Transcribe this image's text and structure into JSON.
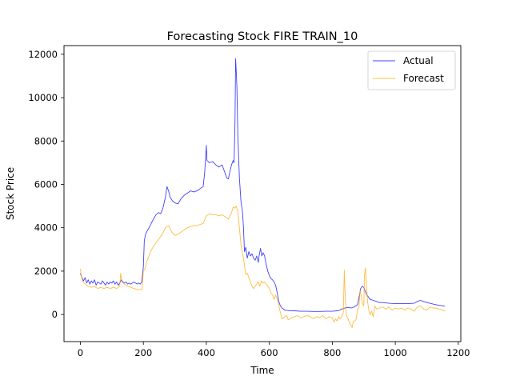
{
  "chart_data": {
    "type": "line",
    "title": "Forecasting Stock FIRE TRAIN_10",
    "xlabel": "Time",
    "ylabel": "Stock Price",
    "xlim": [
      -52,
      1208
    ],
    "ylim": [
      -1250,
      12400
    ],
    "x_ticks": [
      0,
      200,
      400,
      600,
      800,
      1000,
      1200
    ],
    "y_ticks": [
      0,
      2000,
      4000,
      6000,
      8000,
      10000,
      12000
    ],
    "grid": false,
    "legend_position": "upper-right",
    "series": [
      {
        "name": "Actual",
        "color": "#0000ff",
        "points": [
          [
            0,
            1900
          ],
          [
            5,
            1700
          ],
          [
            10,
            1550
          ],
          [
            15,
            1700
          ],
          [
            20,
            1450
          ],
          [
            25,
            1600
          ],
          [
            30,
            1400
          ],
          [
            35,
            1550
          ],
          [
            40,
            1450
          ],
          [
            45,
            1600
          ],
          [
            50,
            1350
          ],
          [
            55,
            1500
          ],
          [
            60,
            1450
          ],
          [
            65,
            1400
          ],
          [
            70,
            1550
          ],
          [
            75,
            1450
          ],
          [
            80,
            1350
          ],
          [
            85,
            1500
          ],
          [
            90,
            1400
          ],
          [
            95,
            1500
          ],
          [
            100,
            1450
          ],
          [
            105,
            1550
          ],
          [
            110,
            1400
          ],
          [
            115,
            1500
          ],
          [
            120,
            1350
          ],
          [
            125,
            1450
          ],
          [
            130,
            1600
          ],
          [
            135,
            1500
          ],
          [
            140,
            1450
          ],
          [
            145,
            1500
          ],
          [
            150,
            1400
          ],
          [
            155,
            1450
          ],
          [
            160,
            1400
          ],
          [
            165,
            1450
          ],
          [
            170,
            1500
          ],
          [
            175,
            1450
          ],
          [
            180,
            1400
          ],
          [
            185,
            1450
          ],
          [
            190,
            1400
          ],
          [
            195,
            1500
          ],
          [
            200,
            2200
          ],
          [
            203,
            3400
          ],
          [
            207,
            3700
          ],
          [
            212,
            3850
          ],
          [
            218,
            4000
          ],
          [
            225,
            4200
          ],
          [
            232,
            4400
          ],
          [
            240,
            4600
          ],
          [
            248,
            4700
          ],
          [
            255,
            4650
          ],
          [
            262,
            4900
          ],
          [
            270,
            5400
          ],
          [
            275,
            5900
          ],
          [
            280,
            5700
          ],
          [
            285,
            5400
          ],
          [
            292,
            5250
          ],
          [
            300,
            5150
          ],
          [
            310,
            5100
          ],
          [
            320,
            5350
          ],
          [
            330,
            5500
          ],
          [
            340,
            5600
          ],
          [
            350,
            5700
          ],
          [
            360,
            5650
          ],
          [
            370,
            5700
          ],
          [
            380,
            5800
          ],
          [
            390,
            5900
          ],
          [
            395,
            6600
          ],
          [
            400,
            7800
          ],
          [
            402,
            7100
          ],
          [
            410,
            7000
          ],
          [
            420,
            7050
          ],
          [
            430,
            6900
          ],
          [
            440,
            6800
          ],
          [
            450,
            6900
          ],
          [
            455,
            6700
          ],
          [
            460,
            6500
          ],
          [
            465,
            6300
          ],
          [
            470,
            6250
          ],
          [
            475,
            6600
          ],
          [
            480,
            6900
          ],
          [
            485,
            7100
          ],
          [
            488,
            7000
          ],
          [
            491,
            8900
          ],
          [
            493,
            11800
          ],
          [
            495,
            11200
          ],
          [
            497,
            10500
          ],
          [
            500,
            8200
          ],
          [
            505,
            6300
          ],
          [
            510,
            5200
          ],
          [
            515,
            4700
          ],
          [
            518,
            4000
          ],
          [
            521,
            2900
          ],
          [
            525,
            3100
          ],
          [
            530,
            2600
          ],
          [
            535,
            2900
          ],
          [
            540,
            2700
          ],
          [
            545,
            2800
          ],
          [
            550,
            2600
          ],
          [
            555,
            2500
          ],
          [
            560,
            2700
          ],
          [
            565,
            2400
          ],
          [
            568,
            2750
          ],
          [
            572,
            3050
          ],
          [
            576,
            2700
          ],
          [
            580,
            2850
          ],
          [
            585,
            2700
          ],
          [
            590,
            2300
          ],
          [
            595,
            2000
          ],
          [
            600,
            1800
          ],
          [
            605,
            1650
          ],
          [
            610,
            1600
          ],
          [
            615,
            1500
          ],
          [
            620,
            1350
          ],
          [
            625,
            1000
          ],
          [
            630,
            600
          ],
          [
            635,
            400
          ],
          [
            640,
            300
          ],
          [
            645,
            250
          ],
          [
            650,
            200
          ],
          [
            660,
            180
          ],
          [
            680,
            170
          ],
          [
            700,
            150
          ],
          [
            720,
            150
          ],
          [
            740,
            140
          ],
          [
            760,
            140
          ],
          [
            780,
            150
          ],
          [
            800,
            150
          ],
          [
            820,
            180
          ],
          [
            830,
            250
          ],
          [
            840,
            300
          ],
          [
            850,
            320
          ],
          [
            860,
            300
          ],
          [
            870,
            350
          ],
          [
            880,
            450
          ],
          [
            885,
            800
          ],
          [
            890,
            1200
          ],
          [
            895,
            1300
          ],
          [
            900,
            1250
          ],
          [
            905,
            1050
          ],
          [
            910,
            900
          ],
          [
            915,
            800
          ],
          [
            920,
            700
          ],
          [
            930,
            650
          ],
          [
            940,
            600
          ],
          [
            950,
            550
          ],
          [
            960,
            550
          ],
          [
            980,
            520
          ],
          [
            1000,
            500
          ],
          [
            1020,
            500
          ],
          [
            1040,
            500
          ],
          [
            1060,
            520
          ],
          [
            1070,
            600
          ],
          [
            1080,
            650
          ],
          [
            1090,
            600
          ],
          [
            1100,
            550
          ],
          [
            1110,
            520
          ],
          [
            1120,
            480
          ],
          [
            1130,
            450
          ],
          [
            1140,
            420
          ],
          [
            1150,
            400
          ],
          [
            1158,
            400
          ]
        ]
      },
      {
        "name": "Forecast",
        "color": "#ffa500",
        "points": [
          [
            0,
            2100
          ],
          [
            3,
            1800
          ],
          [
            8,
            1500
          ],
          [
            15,
            1400
          ],
          [
            25,
            1300
          ],
          [
            35,
            1250
          ],
          [
            45,
            1300
          ],
          [
            55,
            1200
          ],
          [
            65,
            1250
          ],
          [
            75,
            1200
          ],
          [
            85,
            1250
          ],
          [
            95,
            1200
          ],
          [
            105,
            1250
          ],
          [
            115,
            1200
          ],
          [
            125,
            1300
          ],
          [
            128,
            1900
          ],
          [
            132,
            1500
          ],
          [
            140,
            1400
          ],
          [
            150,
            1300
          ],
          [
            160,
            1250
          ],
          [
            170,
            1200
          ],
          [
            180,
            1150
          ],
          [
            190,
            1150
          ],
          [
            196,
            1150
          ],
          [
            200,
            2000
          ],
          [
            205,
            2100
          ],
          [
            210,
            2400
          ],
          [
            220,
            2800
          ],
          [
            230,
            3100
          ],
          [
            240,
            3300
          ],
          [
            250,
            3500
          ],
          [
            260,
            3700
          ],
          [
            270,
            4000
          ],
          [
            280,
            4100
          ],
          [
            290,
            3800
          ],
          [
            300,
            3650
          ],
          [
            310,
            3700
          ],
          [
            320,
            3800
          ],
          [
            330,
            3900
          ],
          [
            340,
            4000
          ],
          [
            350,
            4050
          ],
          [
            360,
            4100
          ],
          [
            370,
            4100
          ],
          [
            380,
            4150
          ],
          [
            390,
            4200
          ],
          [
            400,
            4550
          ],
          [
            410,
            4650
          ],
          [
            420,
            4600
          ],
          [
            430,
            4600
          ],
          [
            440,
            4550
          ],
          [
            450,
            4600
          ],
          [
            460,
            4500
          ],
          [
            470,
            4400
          ],
          [
            480,
            4700
          ],
          [
            485,
            4950
          ],
          [
            490,
            4900
          ],
          [
            495,
            5000
          ],
          [
            500,
            4750
          ],
          [
            505,
            4000
          ],
          [
            510,
            3200
          ],
          [
            515,
            2800
          ],
          [
            520,
            2400
          ],
          [
            525,
            1850
          ],
          [
            530,
            1900
          ],
          [
            535,
            1700
          ],
          [
            540,
            1500
          ],
          [
            545,
            1300
          ],
          [
            550,
            1200
          ],
          [
            555,
            1300
          ],
          [
            560,
            1400
          ],
          [
            565,
            1500
          ],
          [
            570,
            1300
          ],
          [
            575,
            1550
          ],
          [
            580,
            1450
          ],
          [
            585,
            1500
          ],
          [
            590,
            1400
          ],
          [
            595,
            1300
          ],
          [
            600,
            1200
          ],
          [
            605,
            1000
          ],
          [
            610,
            900
          ],
          [
            615,
            700
          ],
          [
            620,
            900
          ],
          [
            625,
            700
          ],
          [
            630,
            400
          ],
          [
            635,
            100
          ],
          [
            640,
            -200
          ],
          [
            645,
            -150
          ],
          [
            650,
            -100
          ],
          [
            655,
            -50
          ],
          [
            660,
            -250
          ],
          [
            670,
            -150
          ],
          [
            680,
            -100
          ],
          [
            690,
            -50
          ],
          [
            700,
            -150
          ],
          [
            710,
            -100
          ],
          [
            720,
            -50
          ],
          [
            730,
            -100
          ],
          [
            740,
            -200
          ],
          [
            750,
            -100
          ],
          [
            760,
            -150
          ],
          [
            770,
            -50
          ],
          [
            780,
            -200
          ],
          [
            790,
            -100
          ],
          [
            800,
            -150
          ],
          [
            805,
            -350
          ],
          [
            810,
            -200
          ],
          [
            815,
            -300
          ],
          [
            820,
            -100
          ],
          [
            825,
            -200
          ],
          [
            830,
            -100
          ],
          [
            835,
            100
          ],
          [
            838,
            2050
          ],
          [
            841,
            800
          ],
          [
            845,
            -50
          ],
          [
            850,
            -200
          ],
          [
            855,
            -400
          ],
          [
            860,
            -500
          ],
          [
            863,
            -600
          ],
          [
            866,
            -350
          ],
          [
            870,
            -300
          ],
          [
            875,
            -250
          ],
          [
            880,
            200
          ],
          [
            885,
            400
          ],
          [
            888,
            1100
          ],
          [
            892,
            850
          ],
          [
            896,
            500
          ],
          [
            900,
            400
          ],
          [
            902,
            1800
          ],
          [
            905,
            2150
          ],
          [
            908,
            1500
          ],
          [
            912,
            600
          ],
          [
            916,
            200
          ],
          [
            920,
            0
          ],
          [
            925,
            150
          ],
          [
            930,
            -100
          ],
          [
            935,
            400
          ],
          [
            940,
            250
          ],
          [
            950,
            300
          ],
          [
            960,
            350
          ],
          [
            970,
            250
          ],
          [
            980,
            350
          ],
          [
            990,
            200
          ],
          [
            1000,
            300
          ],
          [
            1010,
            250
          ],
          [
            1020,
            300
          ],
          [
            1030,
            200
          ],
          [
            1040,
            300
          ],
          [
            1050,
            250
          ],
          [
            1060,
            150
          ],
          [
            1070,
            350
          ],
          [
            1080,
            400
          ],
          [
            1090,
            250
          ],
          [
            1100,
            200
          ],
          [
            1110,
            350
          ],
          [
            1120,
            300
          ],
          [
            1130,
            300
          ],
          [
            1140,
            250
          ],
          [
            1150,
            200
          ],
          [
            1158,
            150
          ]
        ]
      }
    ]
  }
}
